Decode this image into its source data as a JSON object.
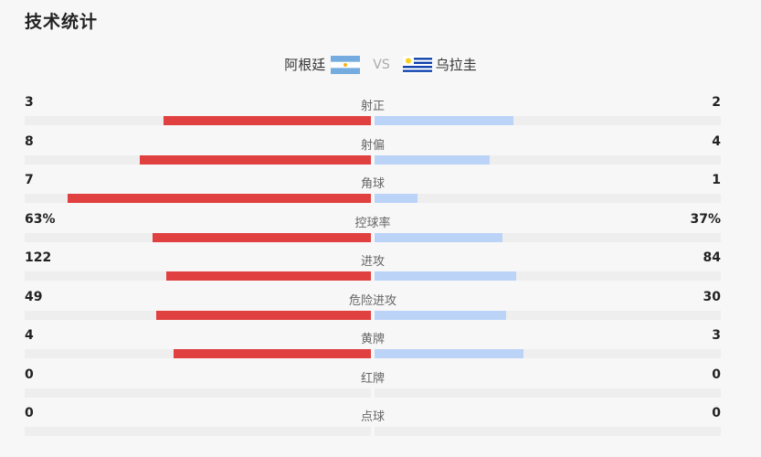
{
  "header": {
    "title": "技术统计"
  },
  "teams": {
    "home": "阿根廷",
    "vs": "VS",
    "away": "乌拉圭"
  },
  "colors": {
    "home_bar": "#e04040",
    "away_bar": "#bcd3f8",
    "track": "#eeeeee"
  },
  "stats": [
    {
      "label": "射正",
      "home": "3",
      "away": "2",
      "home_fill": 0.6,
      "away_fill": 0.4
    },
    {
      "label": "射偏",
      "home": "8",
      "away": "4",
      "home_fill": 0.667,
      "away_fill": 0.333
    },
    {
      "label": "角球",
      "home": "7",
      "away": "1",
      "home_fill": 0.875,
      "away_fill": 0.125
    },
    {
      "label": "控球率",
      "home": "63%",
      "away": "37%",
      "home_fill": 0.63,
      "away_fill": 0.37
    },
    {
      "label": "进攻",
      "home": "122",
      "away": "84",
      "home_fill": 0.592,
      "away_fill": 0.408
    },
    {
      "label": "危险进攻",
      "home": "49",
      "away": "30",
      "home_fill": 0.62,
      "away_fill": 0.38
    },
    {
      "label": "黄牌",
      "home": "4",
      "away": "3",
      "home_fill": 0.571,
      "away_fill": 0.429
    },
    {
      "label": "红牌",
      "home": "0",
      "away": "0",
      "home_fill": 0,
      "away_fill": 0
    },
    {
      "label": "点球",
      "home": "0",
      "away": "0",
      "home_fill": 0,
      "away_fill": 0
    }
  ]
}
